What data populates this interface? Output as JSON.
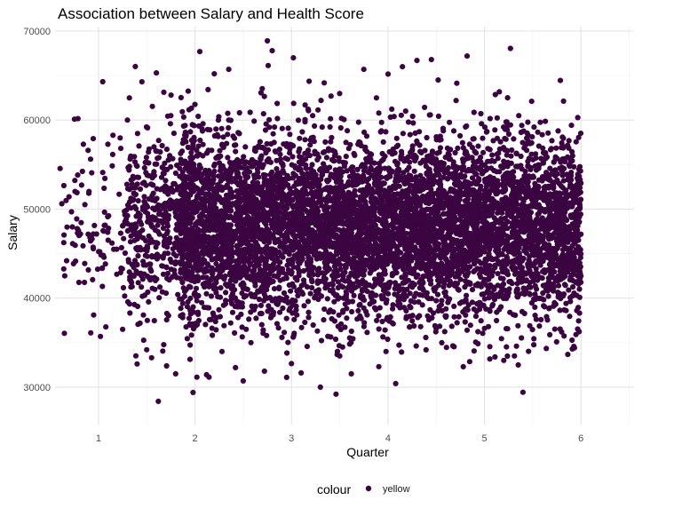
{
  "chart_data": {
    "type": "scatter",
    "title": "Association between Salary and Health Score",
    "xlabel": "Quarter",
    "ylabel": "Salary",
    "xlim": [
      0.55,
      6.55
    ],
    "ylim": [
      25800,
      70500
    ],
    "x_ticks": [
      1,
      2,
      3,
      4,
      5,
      6
    ],
    "x_tick_labels": [
      "1",
      "2",
      "3",
      "4",
      "5",
      "6"
    ],
    "y_ticks": [
      30000,
      40000,
      50000,
      60000,
      70000
    ],
    "y_tick_labels": [
      "30000",
      "40000",
      "50000",
      "60000",
      "70000"
    ],
    "grid": true,
    "legend": {
      "position": "bottom",
      "title": "colour",
      "entries": [
        "yellow"
      ]
    },
    "point_color": "#3b0541",
    "series": [
      {
        "name": "yellow",
        "points_description_count": 60,
        "x": [
          0.65,
          0.67,
          0.72,
          0.78,
          0.8,
          0.92,
          0.95,
          1.02,
          1.05,
          1.1,
          1.15,
          1.25,
          1.3,
          1.35,
          1.4,
          1.45,
          1.5,
          1.55,
          1.6,
          1.62,
          1.68,
          1.75,
          1.8,
          1.85,
          1.98,
          2.05,
          2.12,
          2.2,
          2.28,
          2.35,
          2.42,
          2.5,
          2.58,
          2.65,
          2.72,
          2.75,
          2.8,
          2.95,
          3.02,
          3.1,
          3.22,
          3.3,
          3.41,
          3.5,
          3.62,
          3.75,
          3.88,
          3.98,
          4.08,
          4.15,
          4.3,
          4.45,
          4.52,
          4.78,
          4.82,
          5.0,
          5.2,
          5.35,
          5.8,
          5.98
        ],
        "y": [
          42500,
          44200,
          49700,
          47800,
          47200,
          36100,
          38100,
          35700,
          44800,
          46500,
          58300,
          36500,
          60000,
          52800,
          32600,
          64300,
          34200,
          33300,
          65300,
          28400,
          54000,
          60500,
          31500,
          38000,
          29400,
          67700,
          31400,
          65200,
          34000,
          65700,
          32200,
          30700,
          35000,
          40800,
          31800,
          68900,
          67800,
          31100,
          67000,
          31600,
          60500,
          30000,
          62700,
          33500,
          31500,
          65700,
          62500,
          34000,
          30400,
          66000,
          66700,
          66800,
          64500,
          32300,
          67200,
          36600,
          33000,
          32500,
          36200,
          52700
        ]
      }
    ],
    "cloud_description": "dense cluster of points centred near Salary 48000, spanning Quarter 1.3 to 6.0; core mass roughly 40000-57000"
  }
}
